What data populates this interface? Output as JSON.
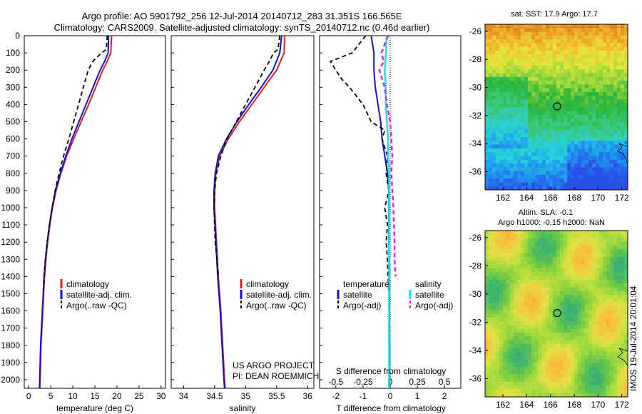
{
  "header": {
    "line1": "Argo profile: AO 5901792_256 12-Jul-2014 20140712_283 31.351S 166.565E",
    "line2": "Climatology: CARS2009. Satellite-adjusted climatology: synTS_20140712.nc (0.46d earlier)"
  },
  "credits": {
    "project": "US ARGO PROJECT",
    "pi": "PI: DEAN ROEMMICH"
  },
  "stamp": "IMOS 19-Jul-2014 20:01:04",
  "colors": {
    "climatology": "#e02020",
    "satellite": "#1010d8",
    "argo": "#000000",
    "sal_satellite": "#20e0e0",
    "sal_argo": "#e020e0"
  },
  "chart_data": [
    {
      "type": "line",
      "xlabel": "temperature (deg C)",
      "ylabel": "",
      "xlim": [
        -1,
        31
      ],
      "ylim": [
        2050,
        0
      ],
      "xticks": [
        0,
        5,
        10,
        15,
        20,
        25,
        30
      ],
      "yticks": [
        0,
        100,
        200,
        300,
        400,
        500,
        600,
        700,
        800,
        900,
        1000,
        1100,
        1200,
        1300,
        1400,
        1500,
        1600,
        1700,
        1800,
        1900,
        2000
      ],
      "legend": [
        "climatology",
        "satellite-adj. clim.",
        "Argo(..raw -QC)"
      ],
      "series": [
        {
          "name": "climatology",
          "depth": [
            0,
            100,
            150,
            200,
            300,
            400,
            500,
            600,
            700,
            800,
            900,
            1000,
            1100,
            1200,
            1300,
            1400,
            1500,
            1600,
            1700,
            1800,
            1900,
            2000,
            2050
          ],
          "values": [
            18.8,
            18.6,
            17.8,
            16.8,
            15.2,
            13.6,
            11.9,
            10.2,
            8.6,
            7.3,
            6.2,
            5.4,
            4.8,
            4.3,
            3.9,
            3.6,
            3.4,
            3.2,
            3.0,
            2.8,
            2.7,
            2.6,
            2.55
          ]
        },
        {
          "name": "satellite-adj. clim.",
          "depth": [
            0,
            100,
            150,
            200,
            300,
            400,
            500,
            600,
            700,
            800,
            900,
            1000,
            1100,
            1200,
            1300,
            1400,
            1500,
            1600,
            1700,
            1800,
            1900,
            2000,
            2050
          ],
          "values": [
            18.1,
            18.0,
            17.2,
            16.2,
            14.6,
            13.0,
            11.4,
            9.8,
            8.4,
            7.2,
            6.1,
            5.3,
            4.7,
            4.2,
            3.8,
            3.5,
            3.3,
            3.1,
            2.9,
            2.7,
            2.6,
            2.5,
            2.45
          ]
        },
        {
          "name": "Argo(..raw -QC)",
          "depth": [
            0,
            80,
            100,
            150,
            200,
            300,
            400,
            500,
            600,
            700,
            800,
            900,
            1000,
            1100,
            1200,
            1300,
            1400,
            1500
          ],
          "values": [
            17.8,
            17.6,
            16.5,
            14.5,
            13.5,
            12.4,
            11.3,
            10.2,
            9.1,
            7.9,
            6.9,
            6.0,
            5.3,
            4.7,
            4.2,
            3.8,
            3.5,
            3.3
          ]
        }
      ]
    },
    {
      "type": "line",
      "xlabel": "salinity",
      "ylabel": "",
      "xlim": [
        33.8,
        36.1
      ],
      "ylim": [
        2050,
        0
      ],
      "xticks": [
        34,
        34.5,
        35,
        35.5,
        36
      ],
      "legend": [
        "climatology",
        "satellite-adj. clim.",
        "Argo(..raw -QC)"
      ],
      "series": [
        {
          "name": "climatology",
          "depth": [
            0,
            100,
            200,
            300,
            400,
            500,
            600,
            700,
            800,
            900,
            1000,
            1200,
            1400,
            1600,
            1800,
            2000,
            2050
          ],
          "values": [
            35.63,
            35.62,
            35.5,
            35.3,
            35.1,
            34.9,
            34.72,
            34.58,
            34.52,
            34.5,
            34.5,
            34.53,
            34.56,
            34.6,
            34.63,
            34.66,
            34.67
          ]
        },
        {
          "name": "satellite-adj. clim.",
          "depth": [
            0,
            100,
            200,
            300,
            400,
            500,
            600,
            700,
            800,
            900,
            1000,
            1200,
            1400,
            1600,
            1800,
            2000,
            2050
          ],
          "values": [
            35.58,
            35.55,
            35.44,
            35.25,
            35.05,
            34.86,
            34.69,
            34.56,
            34.51,
            34.49,
            34.49,
            34.52,
            34.55,
            34.59,
            34.62,
            34.65,
            34.66
          ]
        },
        {
          "name": "Argo(..raw -QC)",
          "depth": [
            0,
            80,
            100,
            150,
            200,
            300,
            400,
            500,
            600,
            700,
            800,
            900,
            1000,
            1100,
            1200,
            1300,
            1400
          ],
          "values": [
            35.55,
            35.52,
            35.45,
            35.38,
            35.3,
            35.15,
            35.0,
            34.85,
            34.7,
            34.6,
            34.53,
            34.5,
            34.49,
            34.5,
            34.51,
            34.54,
            34.56
          ]
        }
      ]
    },
    {
      "type": "line",
      "xlabel": "T difference from climatology",
      "title": "S difference from climatology",
      "xlim": [
        -2.6,
        2.6
      ],
      "ylim": [
        2050,
        0
      ],
      "xticks": [
        -2,
        -1,
        0,
        1,
        2
      ],
      "top_ticks": [
        "-0.5",
        "-0.25",
        "0",
        "0.25",
        "0.5"
      ],
      "legend": {
        "temperature": [
          "satellite",
          "Argo(-adj)"
        ],
        "salinity": [
          "satellite",
          "Argo(-adj)"
        ],
        "temperature_title": "temperature",
        "salinity_title": "salinity"
      },
      "series": [
        {
          "name": "satellite",
          "group": "temperature",
          "depth": [
            0,
            100,
            200,
            300,
            400,
            500,
            600,
            700,
            800,
            900,
            1000,
            1200,
            1400,
            1600,
            1800,
            2000,
            2050
          ],
          "values": [
            -0.7,
            -0.6,
            -0.6,
            -0.55,
            -0.45,
            -0.35,
            -0.3,
            -0.2,
            -0.1,
            -0.05,
            -0.05,
            -0.05,
            -0.03,
            -0.03,
            -0.02,
            -0.02,
            -0.02
          ]
        },
        {
          "name": "Argo(-adj)",
          "group": "temperature",
          "depth": [
            0,
            100,
            150,
            200,
            250,
            300,
            400,
            500,
            550,
            600,
            700,
            800,
            900,
            1000,
            1100,
            1200,
            1300,
            1400,
            1500
          ],
          "values": [
            -0.9,
            -1.4,
            -2.2,
            -2.0,
            -1.8,
            -1.5,
            -1.0,
            -0.7,
            -0.2,
            -0.3,
            -0.1,
            -0.15,
            -0.05,
            -0.2,
            -0.1,
            -0.15,
            -0.1,
            -0.08,
            -0.05
          ]
        },
        {
          "name": "satellite",
          "group": "salinity",
          "depth": [
            0,
            100,
            200,
            300,
            400,
            500,
            600,
            700,
            800,
            900,
            1000,
            1200,
            1400,
            1600,
            1800,
            2000,
            2050
          ],
          "values": [
            -0.03,
            -0.04,
            -0.05,
            -0.04,
            -0.04,
            -0.03,
            -0.02,
            -0.02,
            -0.01,
            -0.01,
            -0.01,
            -0.01,
            -0.01,
            -0.01,
            -0.01,
            -0.01,
            -0.01
          ]
        },
        {
          "name": "Argo(-adj)",
          "group": "salinity",
          "depth": [
            0,
            50,
            100,
            150,
            200,
            300,
            400,
            500,
            600,
            700,
            800,
            900,
            1000,
            1200,
            1300,
            1400
          ],
          "values": [
            -0.02,
            -0.05,
            -0.08,
            -0.06,
            -0.1,
            -0.05,
            -0.03,
            0.0,
            0.01,
            0.02,
            0.01,
            0.02,
            0.03,
            0.04,
            0.04,
            0.05
          ]
        }
      ]
    },
    {
      "type": "heatmap",
      "title": "sat. SST: 17.9 Argo: 17.7",
      "xticks": [
        162,
        164,
        166,
        168,
        170,
        172
      ],
      "yticks": [
        -26,
        -28,
        -30,
        -32,
        -34,
        -36
      ],
      "xlim": [
        160.5,
        172.5
      ],
      "ylim": [
        -37.3,
        -25.5
      ],
      "marker": [
        166.565,
        -31.351
      ]
    },
    {
      "type": "heatmap",
      "title": "Altim. SLA: -0.1",
      "subtitle": "Argo h1000: -0.15 h2000: NaN",
      "xticks": [
        162,
        164,
        166,
        168,
        170,
        172
      ],
      "yticks": [
        -26,
        -28,
        -30,
        -32,
        -34,
        -36
      ],
      "xlim": [
        160.5,
        172.5
      ],
      "ylim": [
        -37.3,
        -25.5
      ],
      "marker": [
        166.565,
        -31.351
      ]
    }
  ]
}
